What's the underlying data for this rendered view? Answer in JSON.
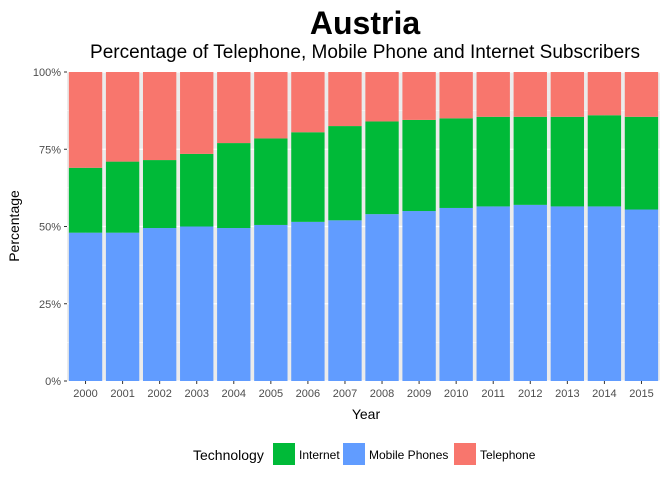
{
  "chart_data": {
    "type": "bar",
    "stacked": true,
    "normalized": true,
    "title": "Austria",
    "subtitle": "Percentage of Telephone, Mobile Phone and Internet Subscribers",
    "xlabel": "Year",
    "ylabel": "Percentage",
    "ylim": [
      0,
      1
    ],
    "y_ticks": [
      "0%",
      "25%",
      "50%",
      "75%",
      "100%"
    ],
    "y_tick_values": [
      0,
      0.25,
      0.5,
      0.75,
      1
    ],
    "grid": true,
    "legend_position": "bottom",
    "legend_title": "Technology",
    "categories": [
      "2000",
      "2001",
      "2002",
      "2003",
      "2004",
      "2005",
      "2006",
      "2007",
      "2008",
      "2009",
      "2010",
      "2011",
      "2012",
      "2013",
      "2014",
      "2015"
    ],
    "series": [
      {
        "name": "Mobile Phones",
        "color": "#619CFF",
        "values": [
          0.48,
          0.48,
          0.495,
          0.5,
          0.495,
          0.505,
          0.515,
          0.52,
          0.54,
          0.55,
          0.56,
          0.565,
          0.57,
          0.565,
          0.565,
          0.555
        ]
      },
      {
        "name": "Internet",
        "color": "#00BA38",
        "values": [
          0.21,
          0.23,
          0.22,
          0.235,
          0.275,
          0.28,
          0.29,
          0.305,
          0.3,
          0.295,
          0.29,
          0.29,
          0.285,
          0.29,
          0.295,
          0.3
        ]
      },
      {
        "name": "Telephone",
        "color": "#F8766D",
        "values": [
          0.31,
          0.29,
          0.285,
          0.265,
          0.23,
          0.215,
          0.195,
          0.175,
          0.16,
          0.155,
          0.15,
          0.145,
          0.145,
          0.145,
          0.14,
          0.145
        ]
      }
    ],
    "legend_order": [
      "Internet",
      "Mobile Phones",
      "Telephone"
    ],
    "panel_background": "#EBEBEB",
    "grid_color": "#FFFFFF"
  }
}
